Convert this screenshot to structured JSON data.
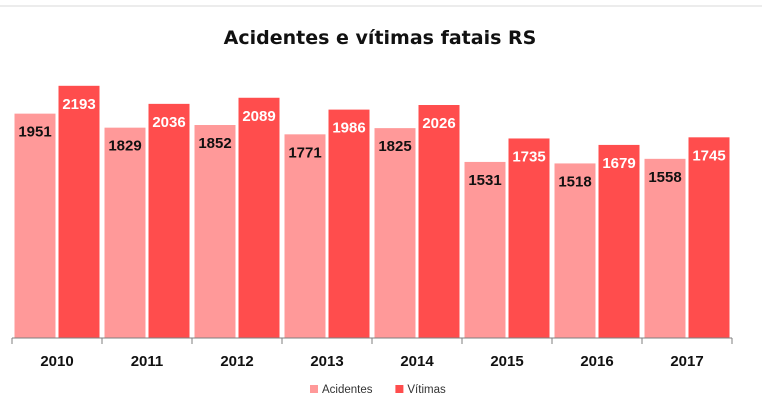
{
  "chart_data": {
    "type": "bar",
    "title": "Acidentes e vítimas fatais RS",
    "xlabel": "",
    "ylabel": "",
    "categories": [
      "2010",
      "2011",
      "2012",
      "2013",
      "2014",
      "2015",
      "2016",
      "2017"
    ],
    "series": [
      {
        "name": "Acidentes",
        "values": [
          1951,
          1829,
          1852,
          1771,
          1825,
          1531,
          1518,
          1558
        ],
        "color": "#ff9999"
      },
      {
        "name": "Vítimas",
        "values": [
          2193,
          2036,
          2089,
          1986,
          2026,
          1735,
          1679,
          1745
        ],
        "color": "#ff4d4d"
      }
    ],
    "ylim": [
      0,
      2400
    ],
    "grid": false,
    "legend": "bottom",
    "label_colors": {
      "Acidentes": "#111111",
      "Vítimas": "#ffffff"
    }
  }
}
